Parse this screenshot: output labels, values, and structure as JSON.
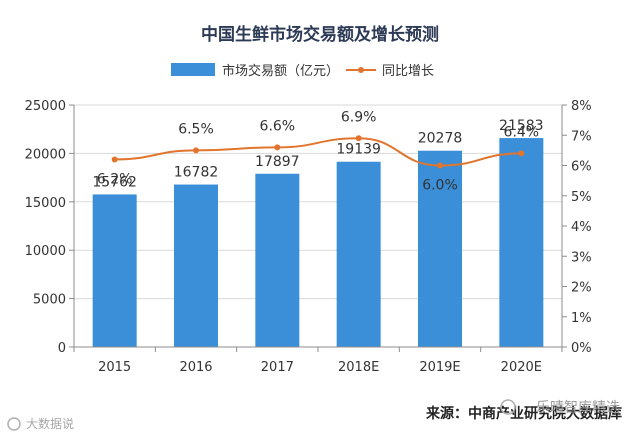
{
  "chart_data": {
    "type": "bar+line",
    "title": "中国生鲜市场交易额及增长预测",
    "categories": [
      "2015",
      "2016",
      "2017",
      "2018E",
      "2019E",
      "2020E"
    ],
    "series": [
      {
        "name": "市场交易额（亿元）",
        "type": "bar",
        "axis": "left",
        "color": "#3a8fd8",
        "values": [
          15762,
          16782,
          17897,
          19139,
          20278,
          21583
        ]
      },
      {
        "name": "同比增长",
        "type": "line",
        "axis": "right",
        "color": "#e2752e",
        "values": [
          6.2,
          6.5,
          6.6,
          6.9,
          6.0,
          6.4
        ],
        "labels": [
          "6.2%",
          "6.5%",
          "6.6%",
          "6.9%",
          "6.0%",
          "6.4%"
        ]
      }
    ],
    "y_left": {
      "min": 0,
      "max": 25000,
      "ticks": [
        "0",
        "5000",
        "10000",
        "15000",
        "20000",
        "25000"
      ]
    },
    "y_right": {
      "min": 0,
      "max": 8,
      "ticks": [
        "0%",
        "1%",
        "2%",
        "3%",
        "4%",
        "5%",
        "6%",
        "7%",
        "8%"
      ]
    },
    "grid": true,
    "legend": "top-center"
  },
  "source": "来源：中商产业研究院大数据库",
  "watermarks": [
    "大数据说",
    "乐晴智库精选"
  ]
}
